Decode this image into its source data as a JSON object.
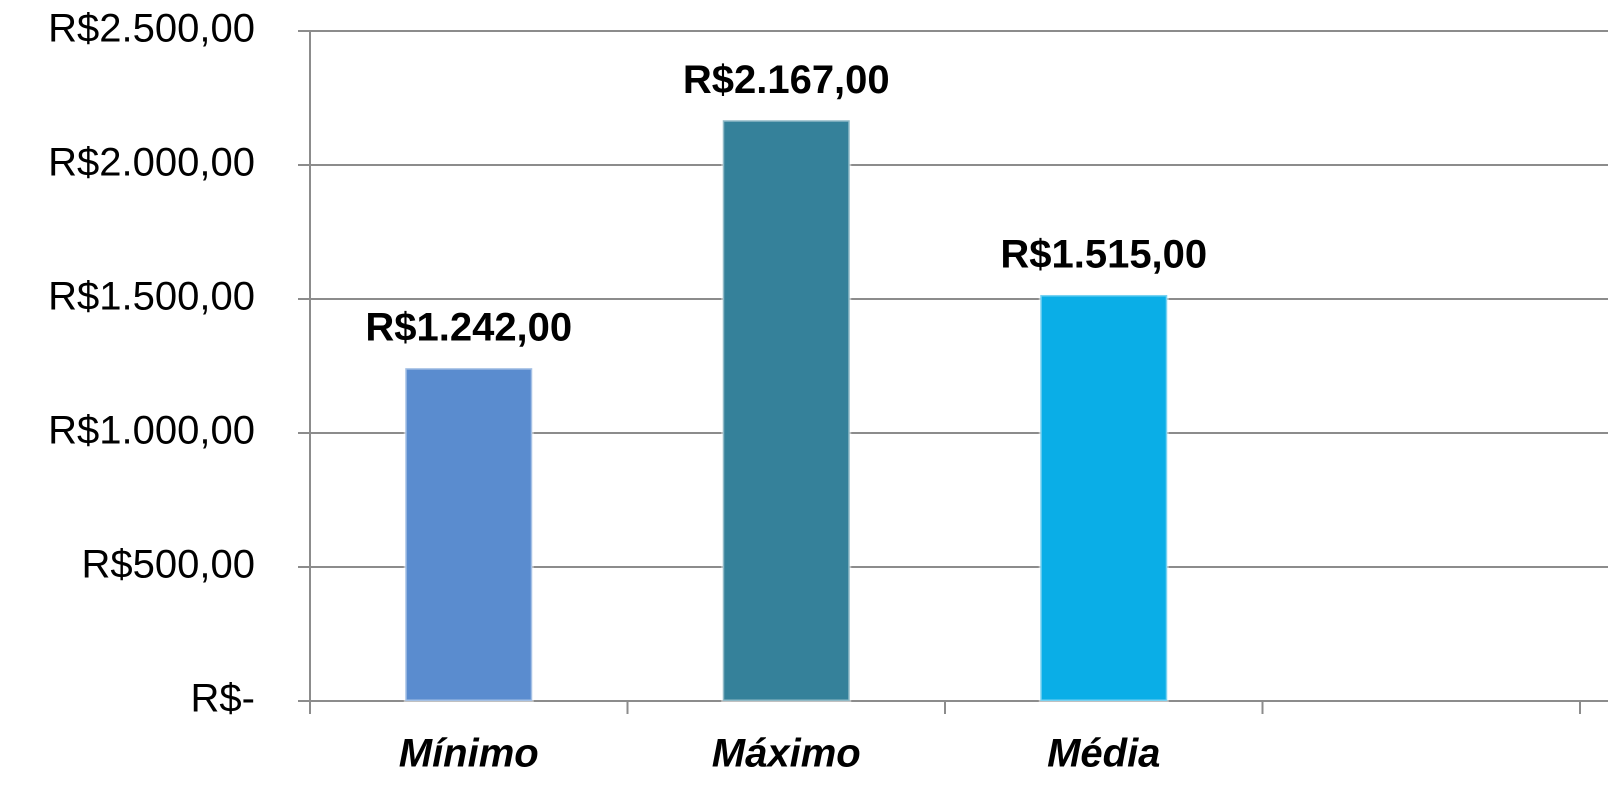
{
  "chart_data": {
    "type": "bar",
    "categories": [
      "Mínimo",
      "Máximo",
      "Média",
      null
    ],
    "values": [
      1242,
      2167,
      1515,
      null
    ],
    "value_labels": [
      "R$1.242,00",
      "R$2.167,00",
      "R$1.515,00",
      null
    ],
    "colors": [
      "#5a8ccf",
      "#35819a",
      "#0aaee7",
      null
    ],
    "ylim": [
      0,
      2500
    ],
    "yticks": [
      {
        "value": 0,
        "label": "R$-"
      },
      {
        "value": 500,
        "label": "R$500,00"
      },
      {
        "value": 1000,
        "label": "R$1.000,00"
      },
      {
        "value": 1500,
        "label": "R$1.500,00"
      },
      {
        "value": 2000,
        "label": "R$2.000,00"
      },
      {
        "value": 2500,
        "label": "R$2.500,00"
      }
    ],
    "grid": true
  }
}
